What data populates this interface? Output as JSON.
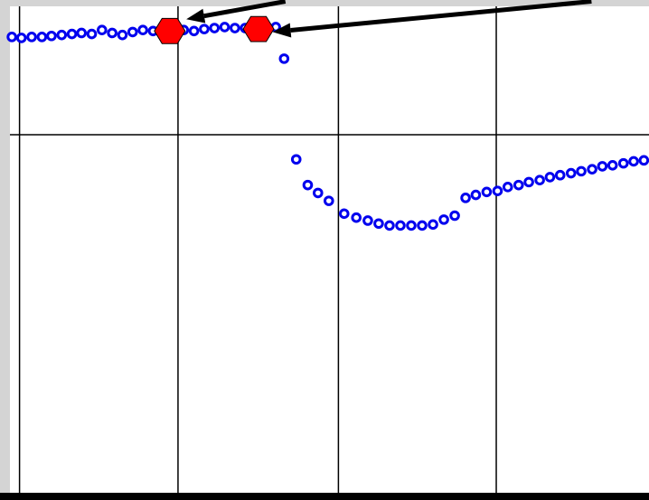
{
  "colors": {
    "background": "#d4d4d4",
    "plot_background": "#ffffff",
    "grid": "#000000",
    "series": "#0000ee",
    "marker": "#ff0000",
    "arrow": "#000000"
  },
  "chart_data": {
    "type": "scatter",
    "title": "",
    "xlabel": "",
    "ylabel": "",
    "grid": true,
    "xlim": [
      0,
      100
    ],
    "ylim": [
      0,
      100
    ],
    "x_gridlines": [
      1.5,
      26.3,
      51.4,
      76.1
    ],
    "y_gridlines": [
      74
    ],
    "series": [
      {
        "marker": "open-circle",
        "points": [
          {
            "x": 0.3,
            "y": 93.8
          },
          {
            "x": 1.8,
            "y": 93.6
          },
          {
            "x": 3.4,
            "y": 93.8
          },
          {
            "x": 5.0,
            "y": 93.8
          },
          {
            "x": 6.5,
            "y": 94.0
          },
          {
            "x": 8.1,
            "y": 94.2
          },
          {
            "x": 9.7,
            "y": 94.4
          },
          {
            "x": 11.2,
            "y": 94.6
          },
          {
            "x": 12.8,
            "y": 94.4
          },
          {
            "x": 14.4,
            "y": 95.2
          },
          {
            "x": 16.0,
            "y": 94.6
          },
          {
            "x": 17.6,
            "y": 94.2
          },
          {
            "x": 19.2,
            "y": 94.8
          },
          {
            "x": 20.8,
            "y": 95.2
          },
          {
            "x": 22.4,
            "y": 95.0
          },
          {
            "x": 24.0,
            "y": 95.2
          },
          {
            "x": 25.6,
            "y": 95.4
          },
          {
            "x": 27.2,
            "y": 95.2
          },
          {
            "x": 28.8,
            "y": 95.0
          },
          {
            "x": 30.4,
            "y": 95.4
          },
          {
            "x": 32.0,
            "y": 95.6
          },
          {
            "x": 33.6,
            "y": 95.8
          },
          {
            "x": 35.2,
            "y": 95.6
          },
          {
            "x": 36.8,
            "y": 95.6
          },
          {
            "x": 38.4,
            "y": 95.4
          },
          {
            "x": 40.0,
            "y": 95.2
          },
          {
            "x": 41.6,
            "y": 95.8
          },
          {
            "x": 42.9,
            "y": 89.4
          },
          {
            "x": 44.8,
            "y": 69.0
          },
          {
            "x": 46.6,
            "y": 63.8
          },
          {
            "x": 48.2,
            "y": 62.2
          },
          {
            "x": 49.9,
            "y": 60.6
          },
          {
            "x": 52.3,
            "y": 58.0
          },
          {
            "x": 54.2,
            "y": 57.2
          },
          {
            "x": 56.0,
            "y": 56.6
          },
          {
            "x": 57.7,
            "y": 56.0
          },
          {
            "x": 59.4,
            "y": 55.6
          },
          {
            "x": 61.1,
            "y": 55.6
          },
          {
            "x": 62.8,
            "y": 55.6
          },
          {
            "x": 64.5,
            "y": 55.6
          },
          {
            "x": 66.2,
            "y": 55.8
          },
          {
            "x": 67.9,
            "y": 56.8
          },
          {
            "x": 69.6,
            "y": 57.6
          },
          {
            "x": 71.3,
            "y": 61.2
          },
          {
            "x": 72.9,
            "y": 61.8
          },
          {
            "x": 74.6,
            "y": 62.4
          },
          {
            "x": 76.3,
            "y": 62.6
          },
          {
            "x": 77.9,
            "y": 63.4
          },
          {
            "x": 79.6,
            "y": 63.8
          },
          {
            "x": 81.2,
            "y": 64.4
          },
          {
            "x": 82.9,
            "y": 64.8
          },
          {
            "x": 84.5,
            "y": 65.4
          },
          {
            "x": 86.1,
            "y": 65.8
          },
          {
            "x": 87.8,
            "y": 66.2
          },
          {
            "x": 89.4,
            "y": 66.6
          },
          {
            "x": 91.1,
            "y": 67.0
          },
          {
            "x": 92.7,
            "y": 67.6
          },
          {
            "x": 94.3,
            "y": 67.8
          },
          {
            "x": 96.0,
            "y": 68.2
          },
          {
            "x": 97.6,
            "y": 68.6
          },
          {
            "x": 99.2,
            "y": 68.8
          }
        ]
      }
    ],
    "highlights": [
      {
        "marker": "hexagon",
        "x": 25.0,
        "y": 95.0
      },
      {
        "marker": "hexagon",
        "x": 38.9,
        "y": 95.4
      }
    ],
    "arrows": [
      {
        "from": [
          43.1,
          101.0
        ],
        "to": [
          27.6,
          97.4
        ]
      },
      {
        "from": [
          91.0,
          101.0
        ],
        "to": [
          41.1,
          94.8
        ]
      }
    ]
  }
}
